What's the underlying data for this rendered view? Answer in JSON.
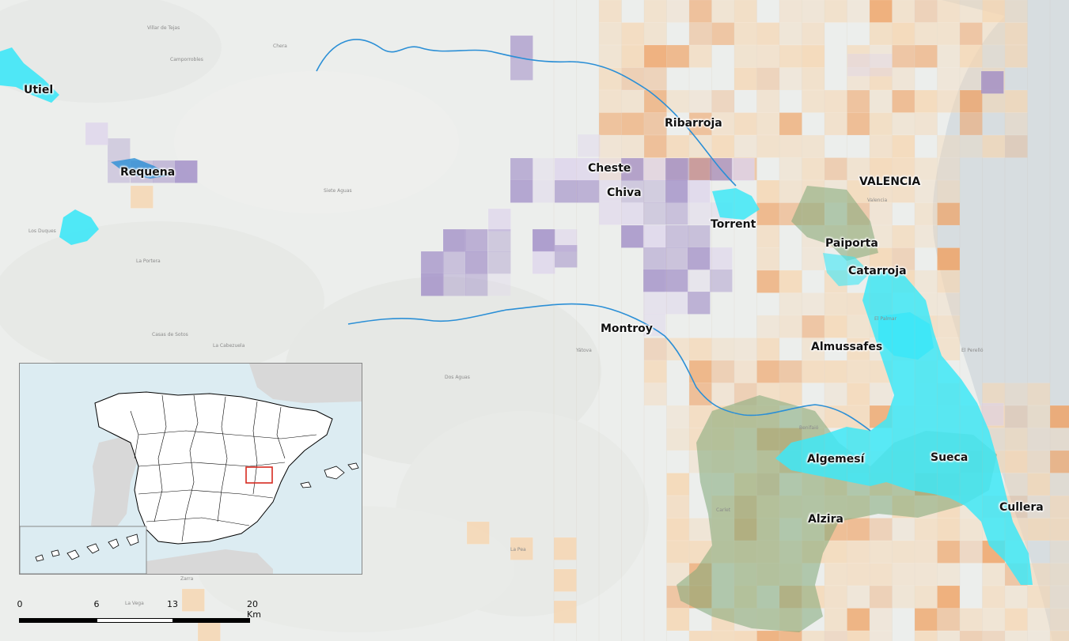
{
  "map": {
    "cities": [
      {
        "id": "utiel",
        "label": "Utiel"
      },
      {
        "id": "requena",
        "label": "Requena"
      },
      {
        "id": "ribarroja",
        "label": "Ribarroja"
      },
      {
        "id": "cheste",
        "label": "Cheste"
      },
      {
        "id": "chiva",
        "label": "Chiva"
      },
      {
        "id": "valencia",
        "label": "VALENCIA"
      },
      {
        "id": "torrent",
        "label": "Torrent"
      },
      {
        "id": "paiporta",
        "label": "Paiporta"
      },
      {
        "id": "catarroja",
        "label": "Catarroja"
      },
      {
        "id": "montroy",
        "label": "Montroy"
      },
      {
        "id": "almussafes",
        "label": "Almussafes"
      },
      {
        "id": "algemesi",
        "label": "Algemesí"
      },
      {
        "id": "sueca",
        "label": "Sueca"
      },
      {
        "id": "cullera",
        "label": "Cullera"
      },
      {
        "id": "alzira",
        "label": "Alzira"
      }
    ],
    "minor_places": [
      {
        "id": "villar-de-tejas",
        "label": "Villar de Tejas"
      },
      {
        "id": "chera",
        "label": "Chera"
      },
      {
        "id": "camporrobles",
        "label": "Camporrobles"
      },
      {
        "id": "los-duques",
        "label": "Los Duques"
      },
      {
        "id": "la-portera",
        "label": "La Portera"
      },
      {
        "id": "casas-de-sotos",
        "label": "Casas de Sotos"
      },
      {
        "id": "la-cabezuela",
        "label": "La Cabezuela"
      },
      {
        "id": "siete-aguas",
        "label": "Siete Aguas"
      },
      {
        "id": "dos-aguas",
        "label": "Dos Aguas"
      },
      {
        "id": "yatova",
        "label": "Yátova"
      },
      {
        "id": "la-vega",
        "label": "La Vega"
      },
      {
        "id": "zarra",
        "label": "Zarra"
      },
      {
        "id": "la-pea",
        "label": "La Pea"
      },
      {
        "id": "valencia-sub",
        "label": "Valencia"
      },
      {
        "id": "el-palmar",
        "label": "El Palmar"
      },
      {
        "id": "benifaio",
        "label": "Benifaió"
      },
      {
        "id": "carlet",
        "label": "Carlet"
      },
      {
        "id": "el-perello",
        "label": "El Perelló"
      }
    ],
    "colors": {
      "background": "#eceeec",
      "flood_cyan": "#3ee7f7",
      "orange_high": "#f0a060",
      "orange_low": "#f7d6b0",
      "purple_high": "#9a85c4",
      "purple_low": "#ddd3ec",
      "green_overlay": "#7fa878",
      "river": "#2b8fd6",
      "sea": "#d7dde0"
    }
  },
  "inset": {
    "highlight_color": "#d62a1f",
    "land_color": "#ffffff",
    "sea_color": "#dcecf2",
    "neighbor_color": "#d8d8d8"
  },
  "scalebar": {
    "ticks": [
      "0",
      "6",
      "13",
      "20 Km"
    ]
  }
}
